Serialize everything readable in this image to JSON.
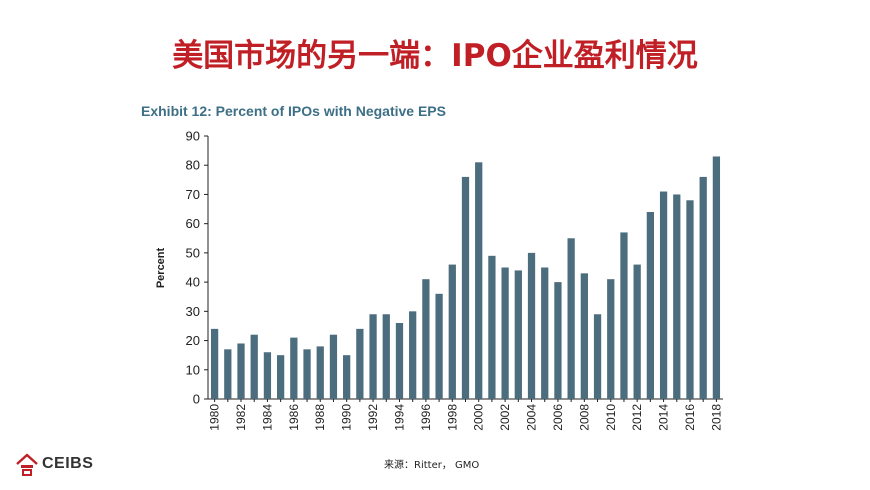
{
  "slide": {
    "title": "美国市场的另一端：IPO企业盈利情况",
    "source": "来源：Ritter， GMO",
    "logo_text": "CEIBS",
    "logo_icon": "ceibs-logo-icon"
  },
  "colors": {
    "title": "#c01f26",
    "exhibit_title": "#3d6f86",
    "bar": "#4c6d7e",
    "axis": "#222222"
  },
  "chart_data": {
    "type": "bar",
    "title": "Exhibit 12: Percent of IPOs with Negative EPS",
    "xlabel": "",
    "ylabel": "Percent",
    "ylim": [
      0,
      90
    ],
    "yticks": [
      0,
      10,
      20,
      30,
      40,
      50,
      60,
      70,
      80,
      90
    ],
    "grid": false,
    "legend": "none",
    "categories": [
      "1980",
      "1981",
      "1982",
      "1983",
      "1984",
      "1985",
      "1986",
      "1987",
      "1988",
      "1989",
      "1990",
      "1991",
      "1992",
      "1993",
      "1994",
      "1995",
      "1996",
      "1997",
      "1998",
      "1999",
      "2000",
      "2001",
      "2002",
      "2003",
      "2004",
      "2005",
      "2006",
      "2007",
      "2008",
      "2009",
      "2010",
      "2011",
      "2012",
      "2013",
      "2014",
      "2015",
      "2016",
      "2017",
      "2018"
    ],
    "xtick_labels": [
      "1980",
      "1982",
      "1984",
      "1986",
      "1988",
      "1990",
      "1992",
      "1994",
      "1996",
      "1998",
      "2000",
      "2002",
      "2004",
      "2006",
      "2008",
      "2010",
      "2012",
      "2014",
      "2016",
      "2018"
    ],
    "values": [
      24,
      17,
      19,
      22,
      16,
      15,
      21,
      17,
      18,
      22,
      15,
      24,
      29,
      29,
      26,
      30,
      41,
      36,
      46,
      76,
      81,
      49,
      45,
      44,
      50,
      45,
      40,
      55,
      43,
      29,
      41,
      57,
      46,
      64,
      71,
      70,
      68,
      76,
      83
    ]
  }
}
